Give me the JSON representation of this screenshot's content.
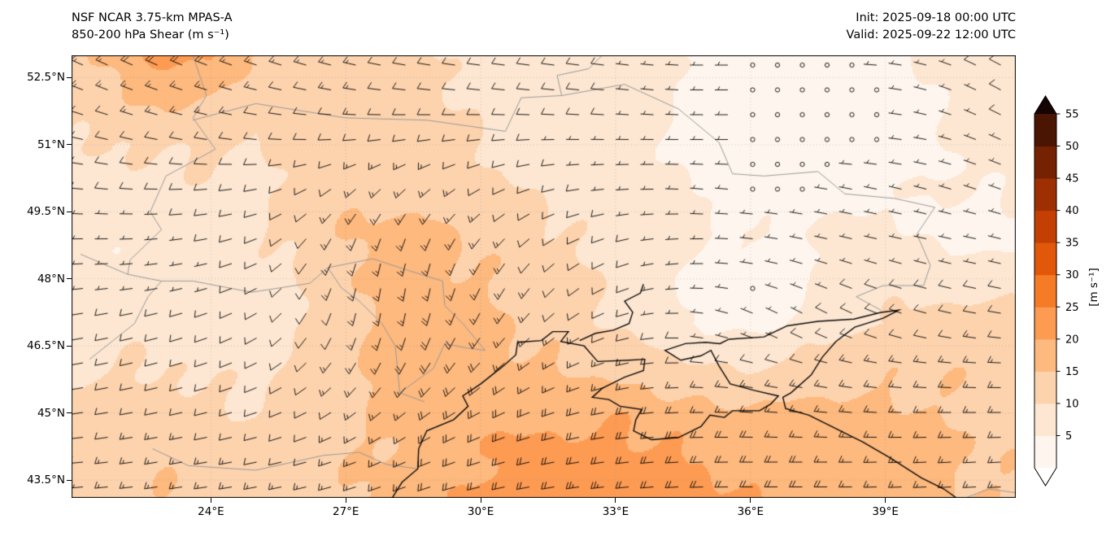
{
  "header": {
    "title_line1": "NSF NCAR 3.75-km MPAS-A",
    "title_line2": "850-200 hPa Shear (m s⁻¹)",
    "init_label": "Init: 2025-09-18 00:00 UTC",
    "valid_label": "Valid: 2025-09-22 12:00 UTC"
  },
  "chart_data": {
    "type": "heatmap",
    "title": "NSF NCAR 3.75-km MPAS-A  850-200 hPa Shear (m s⁻¹)",
    "subtitle": "Init: 2025-09-18 00:00 UTC  Valid: 2025-09-22 12:00 UTC",
    "field_description": "850-200 hPa vertical wind shear magnitude (filled contours, 5 m/s bins) with shear-vector wind barbs; calm (< 2.5 m/s) plotted as open circles",
    "x_axis": {
      "tick_labels": [
        "24°E",
        "27°E",
        "30°E",
        "33°E",
        "36°E",
        "39°E"
      ],
      "tick_values": [
        24,
        27,
        30,
        33,
        36,
        39
      ],
      "range": [
        20.9,
        41.9
      ]
    },
    "y_axis": {
      "tick_labels": [
        "52.5°N",
        "51°N",
        "49.5°N",
        "48°N",
        "46.5°N",
        "45°N",
        "43.5°N"
      ],
      "tick_values": [
        52.5,
        51,
        49.5,
        48,
        46.5,
        45,
        43.5
      ],
      "range": [
        43.1,
        53.0
      ]
    },
    "colorbar": {
      "label": "[m s⁻¹]",
      "tick_values": [
        5,
        10,
        15,
        20,
        25,
        30,
        35,
        40,
        45,
        50,
        55
      ],
      "levels": [
        0,
        5,
        10,
        15,
        20,
        25,
        30,
        35,
        40,
        45,
        50,
        55
      ],
      "band_colors": [
        "#fef6ee",
        "#fde7d2",
        "#fdd3ae",
        "#fdb97e",
        "#fd9b53",
        "#f57b27",
        "#e2580b",
        "#c43f03",
        "#9e2f03",
        "#752203",
        "#4a1503"
      ],
      "over_color": "#150402",
      "under_color": "#ffffff"
    },
    "grid": {
      "lons": [
        21,
        22,
        23,
        24,
        25,
        26,
        27,
        28,
        29,
        30,
        31,
        32,
        33,
        34,
        35,
        36,
        37,
        38,
        39,
        40,
        41,
        42
      ],
      "lats": [
        53,
        52,
        51,
        50,
        49,
        48,
        47,
        46,
        45,
        44,
        43
      ],
      "shear": [
        [
          14,
          18,
          22,
          20,
          15,
          13,
          14,
          12,
          10,
          9,
          8,
          9,
          8,
          6,
          4,
          2,
          2,
          2,
          3,
          6,
          8,
          10
        ],
        [
          12,
          14,
          16,
          15,
          12,
          12,
          13,
          12,
          11,
          9,
          8,
          8,
          8,
          6,
          3,
          2,
          1,
          1,
          2,
          5,
          7,
          9
        ],
        [
          10,
          10,
          11,
          11,
          10,
          11,
          12,
          12,
          12,
          10,
          8,
          7,
          7,
          6,
          3,
          2,
          1,
          2,
          2,
          4,
          6,
          8
        ],
        [
          8,
          8,
          8,
          9,
          9,
          11,
          13,
          14,
          14,
          12,
          10,
          8,
          7,
          6,
          4,
          2,
          2,
          3,
          5,
          5,
          5,
          6
        ],
        [
          6,
          6,
          7,
          8,
          9,
          12,
          15,
          16,
          16,
          14,
          12,
          10,
          8,
          7,
          6,
          5,
          5,
          6,
          6,
          4,
          2,
          3
        ],
        [
          6,
          6,
          6,
          7,
          8,
          10,
          14,
          17,
          17,
          15,
          13,
          11,
          9,
          6,
          3,
          2,
          4,
          7,
          8,
          8,
          8,
          9
        ],
        [
          8,
          8,
          8,
          8,
          8,
          10,
          13,
          17,
          18,
          16,
          14,
          12,
          10,
          7,
          4,
          3,
          6,
          9,
          10,
          11,
          12,
          12
        ],
        [
          10,
          10,
          10,
          9,
          9,
          11,
          14,
          17,
          19,
          18,
          16,
          15,
          14,
          12,
          10,
          10,
          11,
          13,
          14,
          14,
          14,
          13
        ],
        [
          11,
          12,
          12,
          11,
          10,
          11,
          13,
          16,
          18,
          19,
          19,
          19,
          19,
          18,
          17,
          16,
          16,
          16,
          16,
          15,
          14,
          13
        ],
        [
          12,
          13,
          14,
          13,
          12,
          12,
          14,
          16,
          18,
          20,
          21,
          22,
          22,
          21,
          20,
          19,
          18,
          17,
          17,
          16,
          15,
          14
        ],
        [
          13,
          14,
          15,
          14,
          13,
          13,
          15,
          17,
          19,
          21,
          22,
          23,
          23,
          22,
          21,
          20,
          19,
          18,
          17,
          16,
          15,
          14
        ]
      ],
      "dir_to_deg": [
        [
          -25,
          -25,
          -25,
          -22,
          -20,
          -18,
          -15,
          -12,
          -10,
          -8,
          -8,
          -8,
          -8,
          -5,
          0,
          0,
          0,
          0,
          -5,
          -15,
          -25,
          -30
        ],
        [
          -20,
          -20,
          -18,
          -15,
          -12,
          -10,
          -8,
          -5,
          -5,
          -5,
          -5,
          -5,
          -5,
          -5,
          0,
          0,
          0,
          0,
          -5,
          -15,
          -25,
          -30
        ],
        [
          -12,
          -12,
          -10,
          -8,
          -5,
          0,
          5,
          10,
          10,
          8,
          5,
          0,
          0,
          0,
          0,
          0,
          0,
          0,
          -5,
          -10,
          -20,
          -25
        ],
        [
          -5,
          -5,
          0,
          5,
          10,
          25,
          40,
          45,
          40,
          30,
          20,
          10,
          5,
          0,
          -5,
          -5,
          -8,
          -10,
          -12,
          -15,
          -18,
          -20
        ],
        [
          0,
          0,
          5,
          10,
          20,
          45,
          65,
          70,
          65,
          50,
          40,
          25,
          15,
          5,
          0,
          -5,
          -10,
          -12,
          -12,
          -12,
          -12,
          -15
        ],
        [
          5,
          5,
          10,
          15,
          25,
          55,
          75,
          82,
          78,
          65,
          55,
          40,
          25,
          10,
          0,
          -10,
          -18,
          -20,
          -18,
          -15,
          -12,
          -12
        ],
        [
          10,
          12,
          15,
          20,
          30,
          55,
          75,
          80,
          72,
          60,
          48,
          35,
          18,
          5,
          -10,
          -25,
          -30,
          -28,
          -22,
          -15,
          -10,
          -8
        ],
        [
          10,
          12,
          15,
          18,
          25,
          40,
          55,
          62,
          55,
          45,
          35,
          25,
          15,
          5,
          -5,
          -12,
          -15,
          -12,
          -8,
          -5,
          -3,
          0
        ],
        [
          8,
          10,
          12,
          14,
          18,
          25,
          35,
          40,
          35,
          28,
          22,
          16,
          10,
          5,
          0,
          -3,
          -5,
          -5,
          -3,
          0,
          0,
          0
        ],
        [
          5,
          8,
          10,
          10,
          12,
          15,
          20,
          25,
          22,
          18,
          14,
          10,
          8,
          5,
          2,
          0,
          0,
          0,
          2,
          3,
          3,
          3
        ],
        [
          5,
          5,
          8,
          8,
          10,
          12,
          15,
          18,
          16,
          12,
          10,
          8,
          6,
          4,
          2,
          0,
          0,
          0,
          2,
          3,
          3,
          3
        ]
      ]
    },
    "map_layers": {
      "coastlines": [
        [
          [
            28.0,
            43.05
          ],
          [
            28.25,
            43.45
          ],
          [
            28.6,
            43.75
          ],
          [
            28.62,
            44.2
          ],
          [
            28.8,
            44.6
          ],
          [
            29.4,
            44.85
          ],
          [
            29.72,
            45.15
          ],
          [
            29.6,
            45.38
          ],
          [
            30.0,
            45.65
          ],
          [
            30.5,
            46.05
          ],
          [
            30.78,
            46.3
          ],
          [
            30.82,
            46.58
          ],
          [
            31.35,
            46.62
          ],
          [
            31.6,
            46.82
          ],
          [
            31.95,
            46.82
          ],
          [
            31.78,
            46.6
          ],
          [
            32.3,
            46.5
          ],
          [
            32.6,
            46.15
          ],
          [
            33.3,
            46.18
          ],
          [
            33.65,
            46.2
          ],
          [
            33.62,
            45.95
          ],
          [
            33.2,
            45.8
          ],
          [
            32.7,
            45.55
          ],
          [
            32.48,
            45.35
          ],
          [
            32.85,
            45.3
          ],
          [
            33.1,
            45.15
          ],
          [
            33.58,
            45.08
          ],
          [
            33.45,
            44.85
          ],
          [
            33.4,
            44.6
          ],
          [
            33.8,
            44.4
          ],
          [
            34.4,
            44.45
          ],
          [
            34.9,
            44.7
          ],
          [
            35.1,
            44.95
          ],
          [
            35.42,
            44.9
          ],
          [
            35.6,
            45.05
          ],
          [
            36.2,
            45.05
          ],
          [
            36.45,
            45.2
          ],
          [
            36.62,
            45.38
          ],
          [
            36.1,
            45.5
          ],
          [
            35.55,
            45.65
          ],
          [
            35.3,
            46.05
          ],
          [
            35.12,
            46.4
          ],
          [
            34.9,
            46.28
          ],
          [
            34.45,
            46.18
          ],
          [
            34.1,
            46.4
          ],
          [
            34.55,
            46.55
          ],
          [
            35.0,
            46.58
          ],
          [
            35.32,
            46.55
          ],
          [
            35.52,
            46.65
          ],
          [
            36.3,
            46.7
          ],
          [
            36.82,
            46.95
          ],
          [
            37.5,
            47.05
          ],
          [
            38.3,
            47.1
          ],
          [
            38.9,
            47.25
          ],
          [
            39.3,
            47.3
          ],
          [
            38.95,
            47.12
          ],
          [
            38.32,
            46.92
          ],
          [
            37.9,
            46.6
          ],
          [
            37.6,
            46.25
          ],
          [
            37.35,
            45.85
          ],
          [
            36.9,
            45.45
          ],
          [
            36.72,
            45.35
          ],
          [
            36.78,
            45.1
          ],
          [
            37.3,
            44.95
          ],
          [
            37.8,
            44.7
          ],
          [
            38.5,
            44.35
          ],
          [
            39.1,
            44.0
          ],
          [
            39.8,
            43.55
          ],
          [
            40.3,
            43.3
          ],
          [
            40.65,
            43.05
          ]
        ],
        [
          [
            32.2,
            46.62
          ],
          [
            32.55,
            46.78
          ],
          [
            32.95,
            46.85
          ],
          [
            33.3,
            47.0
          ],
          [
            33.38,
            47.25
          ],
          [
            33.2,
            47.5
          ],
          [
            33.55,
            47.68
          ],
          [
            33.62,
            47.88
          ]
        ]
      ],
      "borders": [
        [
          [
            23.6,
            53.0
          ],
          [
            23.9,
            52.1
          ],
          [
            23.6,
            51.6
          ],
          [
            24.1,
            50.9
          ],
          [
            23.0,
            50.3
          ],
          [
            22.65,
            49.5
          ],
          [
            22.9,
            49.1
          ],
          [
            22.2,
            48.42
          ],
          [
            22.15,
            48.1
          ]
        ],
        [
          [
            23.6,
            51.55
          ],
          [
            25.0,
            51.92
          ],
          [
            27.0,
            51.6
          ],
          [
            28.8,
            51.55
          ],
          [
            30.55,
            51.3
          ],
          [
            30.9,
            52.05
          ],
          [
            31.8,
            52.1
          ]
        ],
        [
          [
            31.8,
            52.1
          ],
          [
            31.7,
            52.55
          ],
          [
            32.4,
            52.7
          ],
          [
            32.7,
            53.0
          ]
        ],
        [
          [
            31.8,
            52.1
          ],
          [
            33.2,
            52.35
          ],
          [
            34.4,
            51.8
          ],
          [
            35.3,
            51.05
          ],
          [
            35.6,
            50.35
          ],
          [
            36.3,
            50.3
          ],
          [
            37.5,
            50.4
          ],
          [
            38.1,
            49.9
          ],
          [
            39.2,
            49.8
          ],
          [
            40.1,
            49.6
          ],
          [
            39.7,
            49.0
          ],
          [
            40.0,
            48.3
          ],
          [
            39.85,
            47.85
          ],
          [
            38.95,
            47.85
          ],
          [
            38.35,
            47.6
          ],
          [
            38.9,
            47.3
          ]
        ],
        [
          [
            26.6,
            48.25
          ],
          [
            27.6,
            48.45
          ],
          [
            28.35,
            48.2
          ],
          [
            29.15,
            47.95
          ],
          [
            29.2,
            47.4
          ],
          [
            29.6,
            47.0
          ],
          [
            30.1,
            46.4
          ],
          [
            29.7,
            46.45
          ],
          [
            29.2,
            46.55
          ],
          [
            28.95,
            46.0
          ],
          [
            28.2,
            45.45
          ]
        ],
        [
          [
            26.6,
            48.25
          ],
          [
            26.9,
            47.8
          ],
          [
            27.3,
            47.5
          ],
          [
            27.8,
            47.0
          ],
          [
            28.1,
            46.5
          ],
          [
            28.2,
            45.45
          ],
          [
            28.75,
            45.25
          ]
        ],
        [
          [
            22.7,
            44.2
          ],
          [
            23.5,
            43.82
          ],
          [
            25.0,
            43.72
          ],
          [
            26.5,
            44.05
          ],
          [
            27.3,
            44.12
          ],
          [
            27.9,
            43.85
          ],
          [
            28.6,
            43.75
          ]
        ],
        [
          [
            22.15,
            48.1
          ],
          [
            22.9,
            47.95
          ],
          [
            22.6,
            47.6
          ],
          [
            22.3,
            47.0
          ],
          [
            21.8,
            46.6
          ],
          [
            21.3,
            46.2
          ]
        ],
        [
          [
            21.1,
            48.55
          ],
          [
            22.15,
            48.1
          ]
        ],
        [
          [
            22.9,
            47.95
          ],
          [
            23.6,
            47.95
          ],
          [
            24.9,
            47.7
          ],
          [
            26.2,
            47.9
          ],
          [
            26.6,
            48.25
          ]
        ],
        [
          [
            40.65,
            43.05
          ],
          [
            41.3,
            43.3
          ],
          [
            42.0,
            43.2
          ]
        ]
      ]
    }
  }
}
